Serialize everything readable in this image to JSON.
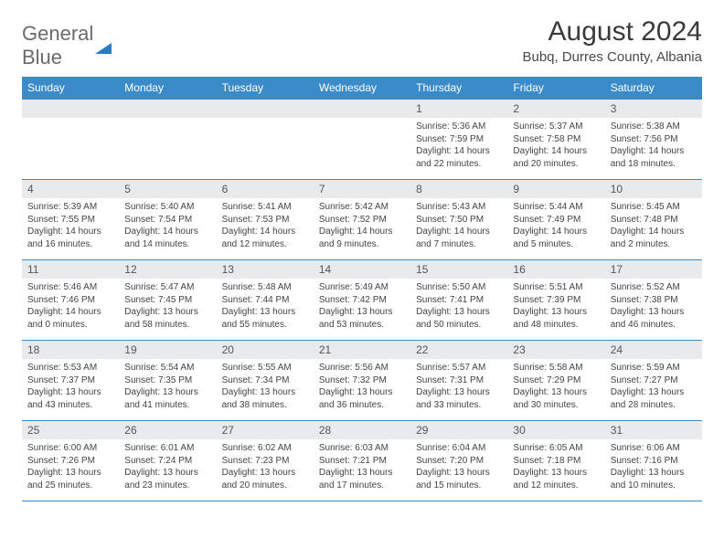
{
  "logo": {
    "word1": "General",
    "word2": "Blue"
  },
  "title": {
    "month": "August 2024",
    "location": "Bubq, Durres County, Albania"
  },
  "day_headers": [
    "Sunday",
    "Monday",
    "Tuesday",
    "Wednesday",
    "Thursday",
    "Friday",
    "Saturday"
  ],
  "colors": {
    "header_bg": "#3b8bc9",
    "header_text": "#ffffff",
    "daynum_bg": "#e9eaeb",
    "rule": "#3b8bc9",
    "logo_gray": "#6a6a6a",
    "logo_blue": "#2a7bbf"
  },
  "weeks": [
    [
      null,
      null,
      null,
      null,
      {
        "n": "1",
        "sr": "5:36 AM",
        "ss": "7:59 PM",
        "dl": "14 hours and 22 minutes."
      },
      {
        "n": "2",
        "sr": "5:37 AM",
        "ss": "7:58 PM",
        "dl": "14 hours and 20 minutes."
      },
      {
        "n": "3",
        "sr": "5:38 AM",
        "ss": "7:56 PM",
        "dl": "14 hours and 18 minutes."
      }
    ],
    [
      {
        "n": "4",
        "sr": "5:39 AM",
        "ss": "7:55 PM",
        "dl": "14 hours and 16 minutes."
      },
      {
        "n": "5",
        "sr": "5:40 AM",
        "ss": "7:54 PM",
        "dl": "14 hours and 14 minutes."
      },
      {
        "n": "6",
        "sr": "5:41 AM",
        "ss": "7:53 PM",
        "dl": "14 hours and 12 minutes."
      },
      {
        "n": "7",
        "sr": "5:42 AM",
        "ss": "7:52 PM",
        "dl": "14 hours and 9 minutes."
      },
      {
        "n": "8",
        "sr": "5:43 AM",
        "ss": "7:50 PM",
        "dl": "14 hours and 7 minutes."
      },
      {
        "n": "9",
        "sr": "5:44 AM",
        "ss": "7:49 PM",
        "dl": "14 hours and 5 minutes."
      },
      {
        "n": "10",
        "sr": "5:45 AM",
        "ss": "7:48 PM",
        "dl": "14 hours and 2 minutes."
      }
    ],
    [
      {
        "n": "11",
        "sr": "5:46 AM",
        "ss": "7:46 PM",
        "dl": "14 hours and 0 minutes."
      },
      {
        "n": "12",
        "sr": "5:47 AM",
        "ss": "7:45 PM",
        "dl": "13 hours and 58 minutes."
      },
      {
        "n": "13",
        "sr": "5:48 AM",
        "ss": "7:44 PM",
        "dl": "13 hours and 55 minutes."
      },
      {
        "n": "14",
        "sr": "5:49 AM",
        "ss": "7:42 PM",
        "dl": "13 hours and 53 minutes."
      },
      {
        "n": "15",
        "sr": "5:50 AM",
        "ss": "7:41 PM",
        "dl": "13 hours and 50 minutes."
      },
      {
        "n": "16",
        "sr": "5:51 AM",
        "ss": "7:39 PM",
        "dl": "13 hours and 48 minutes."
      },
      {
        "n": "17",
        "sr": "5:52 AM",
        "ss": "7:38 PM",
        "dl": "13 hours and 46 minutes."
      }
    ],
    [
      {
        "n": "18",
        "sr": "5:53 AM",
        "ss": "7:37 PM",
        "dl": "13 hours and 43 minutes."
      },
      {
        "n": "19",
        "sr": "5:54 AM",
        "ss": "7:35 PM",
        "dl": "13 hours and 41 minutes."
      },
      {
        "n": "20",
        "sr": "5:55 AM",
        "ss": "7:34 PM",
        "dl": "13 hours and 38 minutes."
      },
      {
        "n": "21",
        "sr": "5:56 AM",
        "ss": "7:32 PM",
        "dl": "13 hours and 36 minutes."
      },
      {
        "n": "22",
        "sr": "5:57 AM",
        "ss": "7:31 PM",
        "dl": "13 hours and 33 minutes."
      },
      {
        "n": "23",
        "sr": "5:58 AM",
        "ss": "7:29 PM",
        "dl": "13 hours and 30 minutes."
      },
      {
        "n": "24",
        "sr": "5:59 AM",
        "ss": "7:27 PM",
        "dl": "13 hours and 28 minutes."
      }
    ],
    [
      {
        "n": "25",
        "sr": "6:00 AM",
        "ss": "7:26 PM",
        "dl": "13 hours and 25 minutes."
      },
      {
        "n": "26",
        "sr": "6:01 AM",
        "ss": "7:24 PM",
        "dl": "13 hours and 23 minutes."
      },
      {
        "n": "27",
        "sr": "6:02 AM",
        "ss": "7:23 PM",
        "dl": "13 hours and 20 minutes."
      },
      {
        "n": "28",
        "sr": "6:03 AM",
        "ss": "7:21 PM",
        "dl": "13 hours and 17 minutes."
      },
      {
        "n": "29",
        "sr": "6:04 AM",
        "ss": "7:20 PM",
        "dl": "13 hours and 15 minutes."
      },
      {
        "n": "30",
        "sr": "6:05 AM",
        "ss": "7:18 PM",
        "dl": "13 hours and 12 minutes."
      },
      {
        "n": "31",
        "sr": "6:06 AM",
        "ss": "7:16 PM",
        "dl": "13 hours and 10 minutes."
      }
    ]
  ],
  "labels": {
    "sunrise": "Sunrise: ",
    "sunset": "Sunset: ",
    "daylight": "Daylight: "
  }
}
